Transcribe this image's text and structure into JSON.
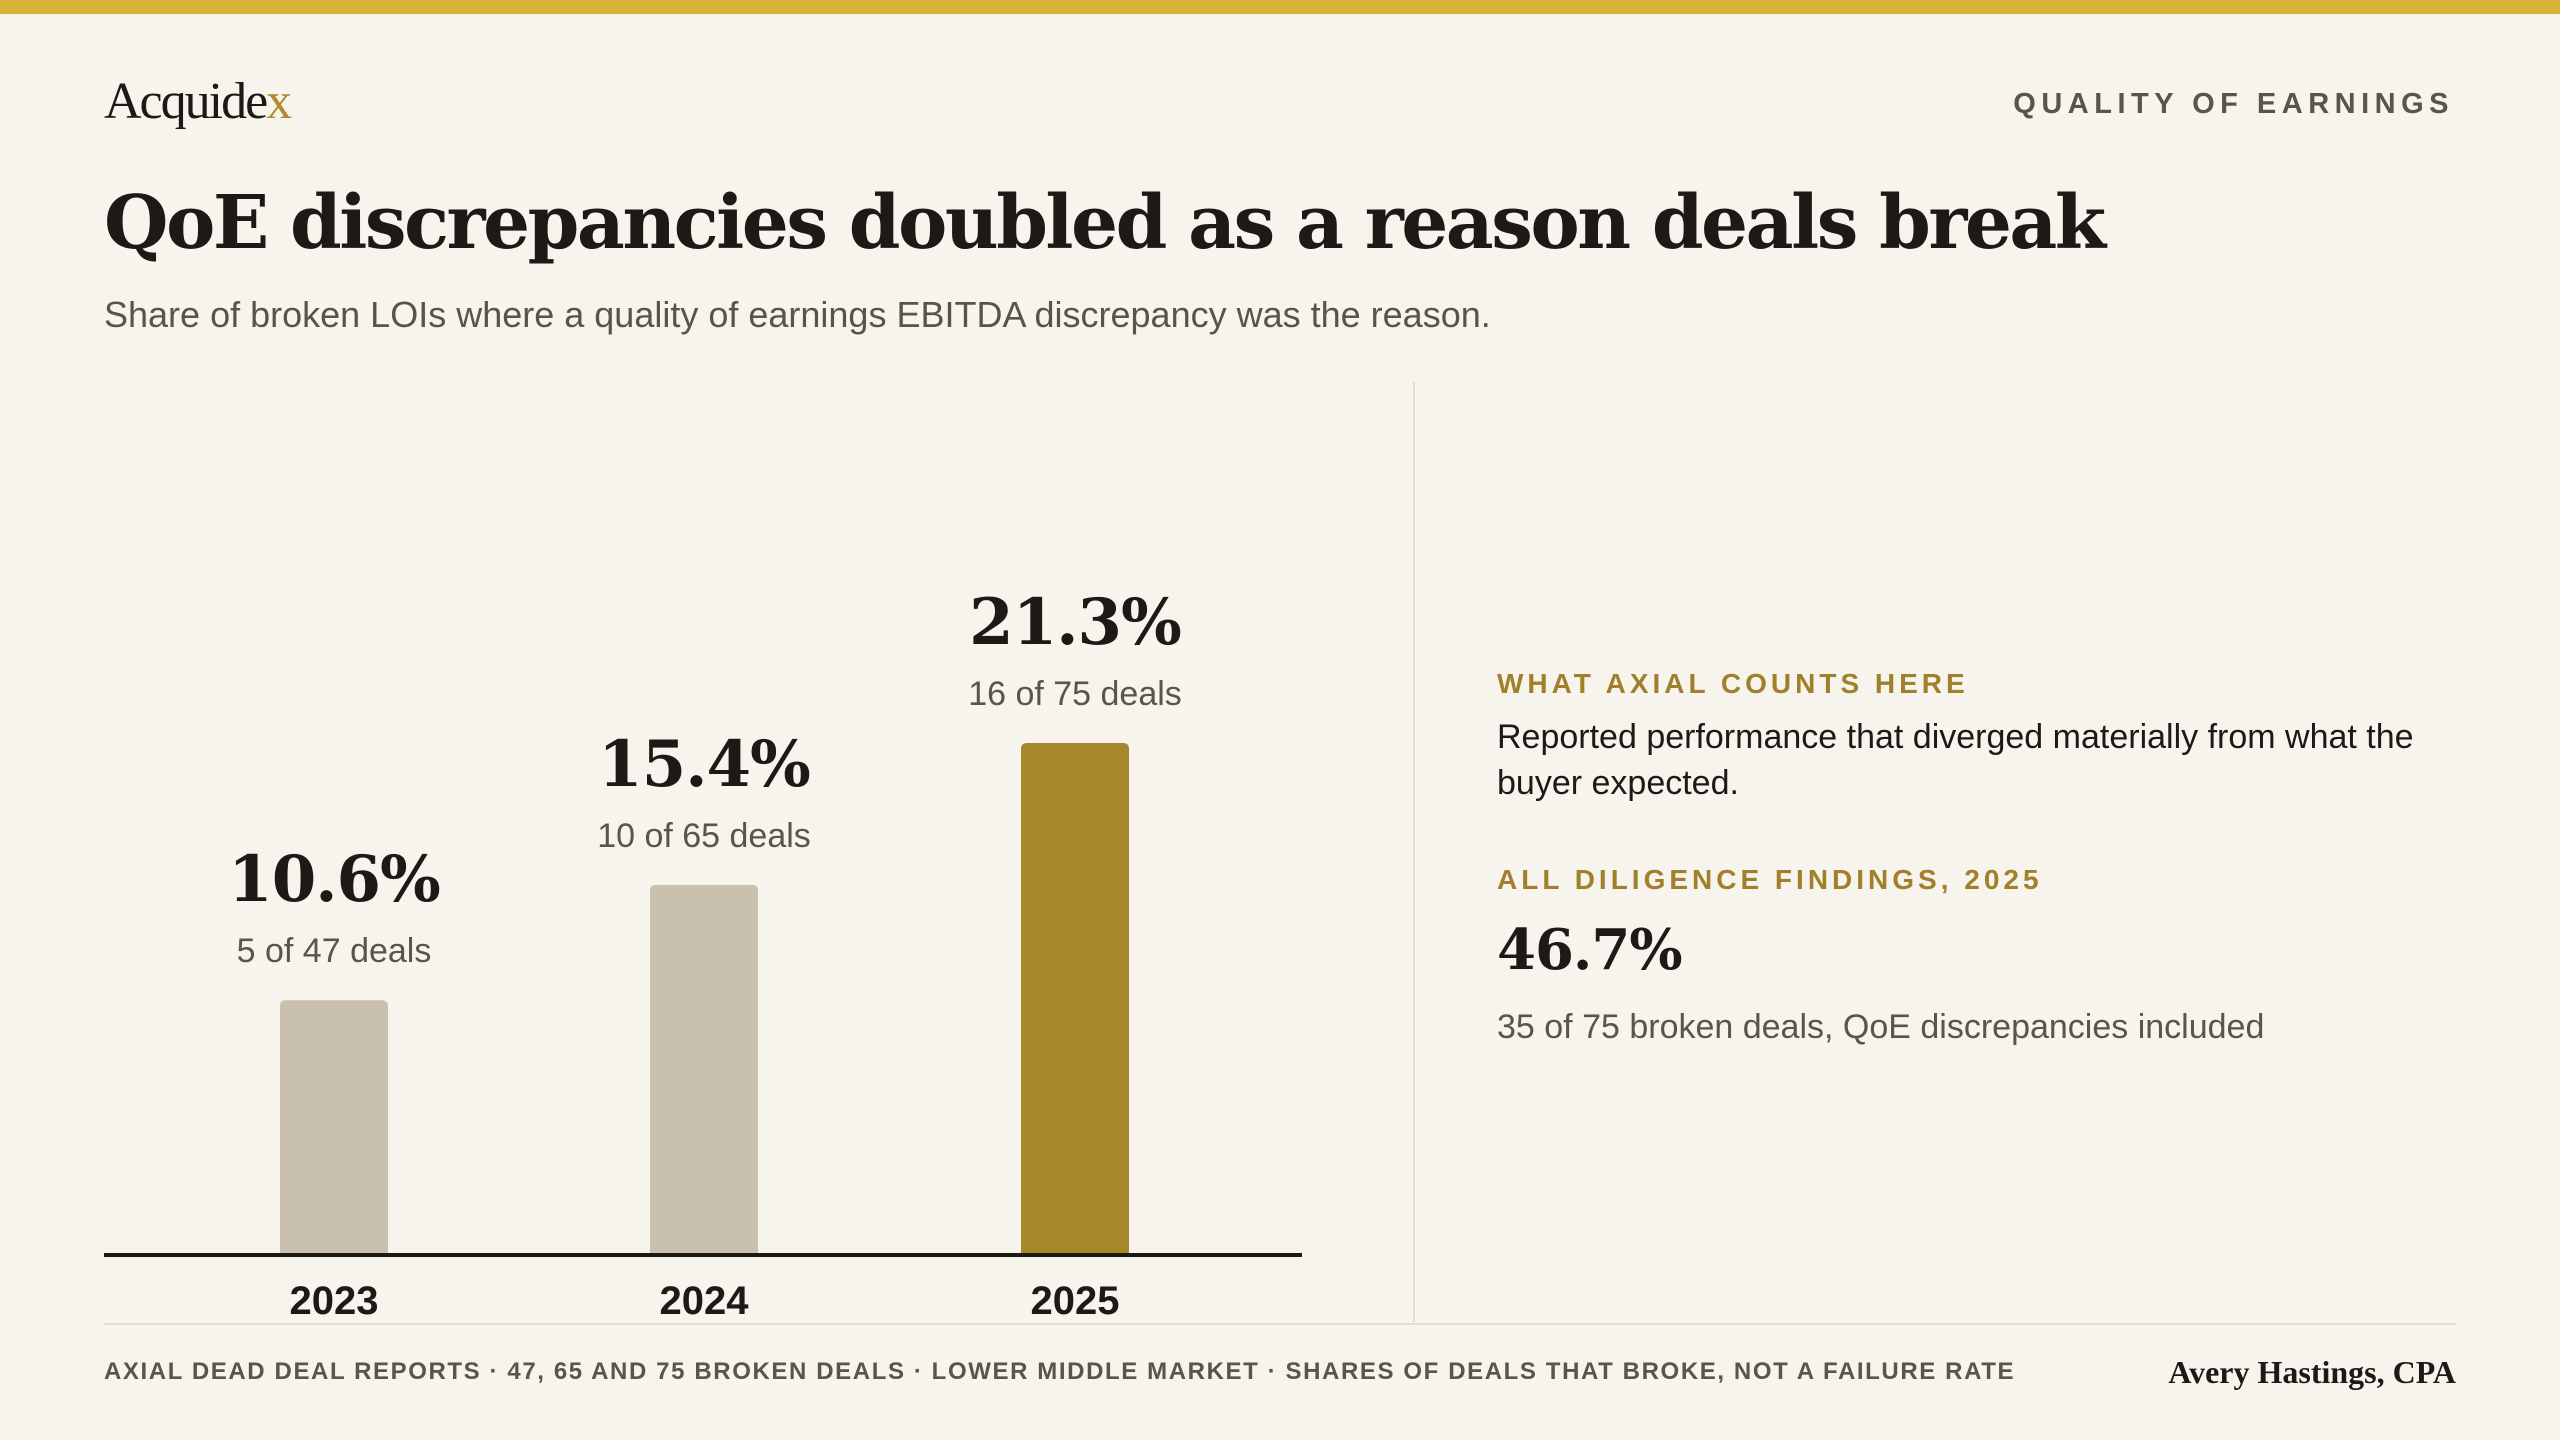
{
  "brand": {
    "logo_text": "Acquide",
    "logo_accent": "x"
  },
  "header": {
    "kicker": "QUALITY OF EARNINGS"
  },
  "title": "QoE discrepancies doubled as a reason deals break",
  "subtitle": "Share of broken LOIs where a quality of earnings EBITDA discrepancy was the reason.",
  "colors": {
    "accent": "#d9b23a",
    "bar_highlight": "#a6872a",
    "bar_muted": "#c9c1ae",
    "background": "#f7f4ee"
  },
  "chart_data": {
    "type": "bar",
    "categories": [
      "2023",
      "2024",
      "2025"
    ],
    "values": [
      10.6,
      15.4,
      21.3
    ],
    "value_labels": [
      "10.6%",
      "15.4%",
      "21.3%"
    ],
    "count_labels": [
      "5 of 47 deals",
      "10 of 65 deals",
      "16 of 75 deals"
    ],
    "highlight_index": 2,
    "ylim": [
      0,
      21.3
    ],
    "title": "",
    "xlabel": "",
    "ylabel": "",
    "grid": false
  },
  "side_panel": {
    "definition_heading": "WHAT AXIAL COUNTS HERE",
    "definition_text": "Reported performance that diverged materially from what the buyer expected.",
    "findings_heading": "ALL DILIGENCE FINDINGS, 2025",
    "findings_value": "46.7%",
    "findings_note": "35 of 75 broken deals, QoE discrepancies included"
  },
  "footer": {
    "source": "AXIAL DEAD DEAL REPORTS · 47, 65 AND 75 BROKEN DEALS · LOWER MIDDLE MARKET · SHARES OF DEALS THAT BROKE, NOT A FAILURE RATE",
    "author": "Avery Hastings, CPA"
  }
}
